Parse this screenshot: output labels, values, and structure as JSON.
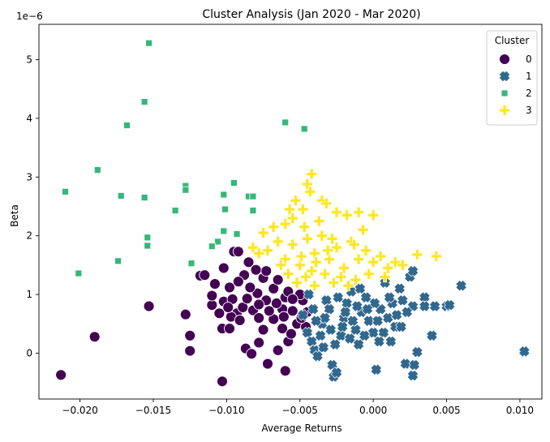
{
  "chart_data": {
    "type": "scatter",
    "title": "Cluster Analysis (Jan 2020 - Mar 2020)",
    "xlabel": "Average Returns",
    "ylabel": "Beta",
    "y_multiplier_label": "1e−6",
    "xlim": [
      -0.0228,
      0.0115
    ],
    "ylim": [
      -0.78,
      5.6
    ],
    "xticks": [
      -0.02,
      -0.015,
      -0.01,
      -0.005,
      0.0,
      0.005,
      0.01
    ],
    "xtick_labels": [
      "−0.020",
      "−0.015",
      "−0.010",
      "−0.005",
      "0.000",
      "0.005",
      "0.010"
    ],
    "yticks": [
      0,
      1,
      2,
      3,
      4,
      5
    ],
    "ytick_labels": [
      "0",
      "1",
      "2",
      "3",
      "4",
      "5"
    ],
    "grid": false,
    "legend": {
      "title": "Cluster",
      "placement": "top-right"
    },
    "series": [
      {
        "name": "0",
        "color": "#440154",
        "marker": "circle",
        "points": [
          [
            -0.0213,
            -0.37
          ],
          [
            -0.019,
            0.28
          ],
          [
            -0.0153,
            0.8
          ],
          [
            -0.0128,
            0.66
          ],
          [
            -0.0125,
            0.3
          ],
          [
            -0.0125,
            0.04
          ],
          [
            -0.0103,
            -0.48
          ],
          [
            -0.0103,
            0.42
          ],
          [
            -0.0105,
            0.68
          ],
          [
            -0.011,
            0.82
          ],
          [
            -0.011,
            0.98
          ],
          [
            -0.0108,
            1.18
          ],
          [
            -0.0118,
            1.32
          ],
          [
            -0.0115,
            1.33
          ],
          [
            -0.0102,
            1.45
          ],
          [
            -0.0095,
            1.73
          ],
          [
            -0.0092,
            1.73
          ],
          [
            -0.0085,
            1.55
          ],
          [
            -0.0088,
            1.33
          ],
          [
            -0.0092,
            1.22
          ],
          [
            -0.0098,
            1.12
          ],
          [
            -0.0102,
            0.88
          ],
          [
            -0.0096,
            0.92
          ],
          [
            -0.0098,
            0.42
          ],
          [
            -0.0093,
            0.68
          ],
          [
            -0.0089,
            0.78
          ],
          [
            -0.0086,
            0.93
          ],
          [
            -0.0082,
            0.73
          ],
          [
            -0.0087,
            0.08
          ],
          [
            -0.0083,
            -0.01
          ],
          [
            -0.0078,
            0.18
          ],
          [
            -0.0072,
            -0.18
          ],
          [
            -0.0065,
            0.05
          ],
          [
            -0.006,
            -0.3
          ],
          [
            -0.0058,
            0.2
          ],
          [
            -0.0062,
            0.42
          ],
          [
            -0.0075,
            0.4
          ],
          [
            -0.0078,
            0.6
          ],
          [
            -0.0073,
            0.9
          ],
          [
            -0.0068,
            1.1
          ],
          [
            -0.0075,
            1.28
          ],
          [
            -0.0073,
            1.4
          ],
          [
            -0.008,
            1.42
          ],
          [
            -0.0065,
            1.25
          ],
          [
            -0.006,
            0.95
          ],
          [
            -0.0055,
            0.72
          ],
          [
            -0.0052,
            0.5
          ],
          [
            -0.0048,
            0.9
          ],
          [
            -0.0046,
            0.45
          ],
          [
            -0.0056,
            0.33
          ],
          [
            -0.0068,
            0.58
          ],
          [
            -0.0062,
            0.75
          ],
          [
            -0.0071,
            0.72
          ],
          [
            -0.0079,
            1.02
          ],
          [
            -0.0084,
            1.12
          ],
          [
            -0.0058,
            1.05
          ],
          [
            -0.005,
            1.0
          ],
          [
            -0.0045,
            0.7
          ],
          [
            -0.0066,
            0.85
          ],
          [
            -0.0055,
            0.92
          ],
          [
            -0.0097,
            0.62
          ],
          [
            -0.0099,
            0.78
          ],
          [
            -0.0091,
            0.56
          ],
          [
            -0.0078,
            0.83
          ],
          [
            -0.0061,
            0.62
          ],
          [
            -0.0049,
            0.6
          ]
        ]
      },
      {
        "name": "1",
        "color": "#31688e",
        "marker": "x",
        "points": [
          [
            -0.0048,
            0.65
          ],
          [
            -0.0045,
            0.35
          ],
          [
            -0.0042,
            0.2
          ],
          [
            -0.004,
            0.05
          ],
          [
            -0.0038,
            -0.05
          ],
          [
            -0.0035,
            0.5
          ],
          [
            -0.0032,
            0.9
          ],
          [
            -0.003,
            0.75
          ],
          [
            -0.0028,
            -0.2
          ],
          [
            -0.0027,
            -0.4
          ],
          [
            -0.0025,
            -0.33
          ],
          [
            -0.0022,
            0.3
          ],
          [
            -0.002,
            0.6
          ],
          [
            -0.0018,
            0.85
          ],
          [
            -0.0015,
            1.05
          ],
          [
            -0.0012,
            0.4
          ],
          [
            -0.001,
            0.15
          ],
          [
            -0.0008,
            0.7
          ],
          [
            -0.0005,
            0.95
          ],
          [
            -0.0003,
            0.55
          ],
          [
            0.0,
            0.35
          ],
          [
            0.0002,
            -0.28
          ],
          [
            0.0005,
            0.75
          ],
          [
            0.0008,
            1.2
          ],
          [
            0.001,
            0.6
          ],
          [
            0.0012,
            0.2
          ],
          [
            0.0015,
            0.45
          ],
          [
            0.0018,
            1.1
          ],
          [
            0.002,
            0.9
          ],
          [
            0.0022,
            -0.18
          ],
          [
            0.0025,
            1.3
          ],
          [
            0.0027,
            1.4
          ],
          [
            0.0027,
            0.8
          ],
          [
            0.0028,
            -0.2
          ],
          [
            0.0027,
            -0.38
          ],
          [
            0.003,
            0.02
          ],
          [
            0.0035,
            0.95
          ],
          [
            0.0035,
            0.8
          ],
          [
            0.004,
            0.3
          ],
          [
            0.0042,
            0.8
          ],
          [
            0.005,
            0.8
          ],
          [
            0.0052,
            0.82
          ],
          [
            0.006,
            1.15
          ],
          [
            0.0103,
            0.03
          ],
          [
            -0.0041,
            0.75
          ],
          [
            -0.0036,
            0.3
          ],
          [
            -0.0033,
            0.6
          ],
          [
            -0.0024,
            0.95
          ],
          [
            -0.0021,
            0.45
          ],
          [
            -0.0016,
            0.25
          ],
          [
            -0.0011,
            0.8
          ],
          [
            -0.0006,
            0.3
          ],
          [
            0.0003,
            0.55
          ],
          [
            0.0007,
            0.35
          ],
          [
            0.0013,
            0.85
          ],
          [
            -0.0044,
            1.0
          ],
          [
            -0.0039,
            0.55
          ],
          [
            -0.0029,
            0.4
          ],
          [
            -0.0019,
            0.7
          ],
          [
            -0.0009,
            1.1
          ],
          [
            0.0001,
            0.85
          ],
          [
            0.0011,
            0.95
          ],
          [
            0.0016,
            0.65
          ],
          [
            -0.0034,
            0.1
          ],
          [
            -0.0026,
            0.15
          ],
          [
            -0.0014,
            0.55
          ],
          [
            -0.0004,
            0.75
          ],
          [
            0.0004,
            0.2
          ],
          [
            0.0019,
            0.45
          ],
          [
            0.0023,
            0.7
          ]
        ]
      },
      {
        "name": "2",
        "color": "#35b779",
        "marker": "square",
        "points": [
          [
            -0.0153,
            5.28
          ],
          [
            -0.0156,
            4.28
          ],
          [
            -0.0168,
            3.88
          ],
          [
            -0.0188,
            3.12
          ],
          [
            -0.021,
            2.75
          ],
          [
            -0.0172,
            2.68
          ],
          [
            -0.0156,
            2.65
          ],
          [
            -0.0128,
            2.85
          ],
          [
            -0.0128,
            2.78
          ],
          [
            -0.0135,
            2.43
          ],
          [
            -0.0095,
            2.9
          ],
          [
            -0.0102,
            2.7
          ],
          [
            -0.0085,
            2.67
          ],
          [
            -0.0082,
            2.67
          ],
          [
            -0.0082,
            2.43
          ],
          [
            -0.0101,
            2.45
          ],
          [
            -0.0102,
            2.08
          ],
          [
            -0.0106,
            1.9
          ],
          [
            -0.011,
            1.82
          ],
          [
            -0.0093,
            2.03
          ],
          [
            -0.0154,
            1.97
          ],
          [
            -0.0154,
            1.83
          ],
          [
            -0.0174,
            1.57
          ],
          [
            -0.0124,
            1.53
          ],
          [
            -0.0201,
            1.36
          ],
          [
            -0.006,
            3.93
          ],
          [
            -0.0047,
            3.82
          ]
        ]
      },
      {
        "name": "3",
        "color": "#fde725",
        "marker": "plus",
        "points": [
          [
            -0.0042,
            3.05
          ],
          [
            -0.0045,
            2.88
          ],
          [
            -0.0043,
            2.75
          ],
          [
            -0.0048,
            2.45
          ],
          [
            -0.0053,
            2.6
          ],
          [
            -0.0055,
            2.3
          ],
          [
            -0.0035,
            2.6
          ],
          [
            -0.0032,
            2.55
          ],
          [
            -0.0025,
            2.4
          ],
          [
            -0.0018,
            2.35
          ],
          [
            -0.001,
            2.4
          ],
          [
            0.0,
            2.35
          ],
          [
            -0.006,
            2.2
          ],
          [
            -0.0068,
            2.15
          ],
          [
            -0.0075,
            2.05
          ],
          [
            -0.0082,
            1.8
          ],
          [
            -0.0078,
            1.7
          ],
          [
            -0.0072,
            1.75
          ],
          [
            -0.0065,
            1.9
          ],
          [
            -0.006,
            1.6
          ],
          [
            -0.0055,
            1.85
          ],
          [
            -0.005,
            1.5
          ],
          [
            -0.0045,
            1.95
          ],
          [
            -0.004,
            1.7
          ],
          [
            -0.0035,
            2.0
          ],
          [
            -0.003,
            1.6
          ],
          [
            -0.0025,
            1.8
          ],
          [
            -0.002,
            1.45
          ],
          [
            -0.0015,
            1.9
          ],
          [
            -0.001,
            1.6
          ],
          [
            -0.0005,
            1.75
          ],
          [
            0.0,
            1.55
          ],
          [
            0.0005,
            1.65
          ],
          [
            0.001,
            1.45
          ],
          [
            0.0015,
            1.55
          ],
          [
            0.002,
            1.5
          ],
          [
            0.003,
            1.68
          ],
          [
            0.0043,
            1.65
          ],
          [
            -0.0058,
            1.35
          ],
          [
            -0.0052,
            1.2
          ],
          [
            -0.0046,
            1.3
          ],
          [
            -0.004,
            1.15
          ],
          [
            -0.0033,
            1.35
          ],
          [
            -0.0027,
            1.2
          ],
          [
            -0.0022,
            1.3
          ],
          [
            -0.0017,
            1.15
          ],
          [
            -0.0012,
            1.25
          ],
          [
            -0.0007,
            2.1
          ],
          [
            -0.0037,
            2.25
          ],
          [
            -0.0028,
            1.95
          ],
          [
            -0.0063,
            1.5
          ],
          [
            -0.0049,
            1.65
          ],
          [
            -0.0042,
            1.4
          ],
          [
            -0.0031,
            1.75
          ],
          [
            -0.0013,
            1.85
          ],
          [
            -0.0003,
            1.35
          ],
          [
            0.0008,
            1.3
          ],
          [
            -0.0057,
            2.45
          ],
          [
            -0.0047,
            2.15
          ],
          [
            -0.0039,
            1.55
          ]
        ]
      }
    ]
  }
}
